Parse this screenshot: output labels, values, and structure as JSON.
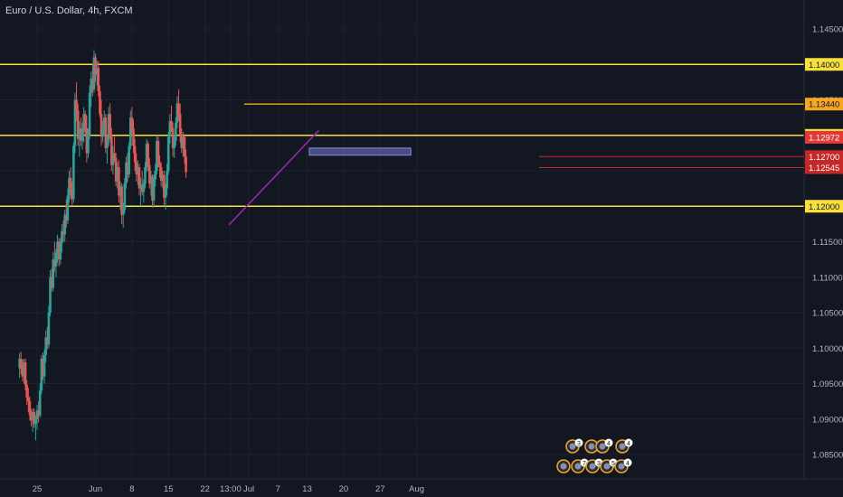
{
  "header": {
    "symbol_title": "Euro / U.S. Dollar, 4h, FXCM"
  },
  "colors": {
    "background": "#131722",
    "grid": "#1e2230",
    "axis_text": "#b2b5be",
    "candle_up": "#26a69a",
    "candle_down": "#ef5350",
    "level_line": "#f7e03c",
    "level_line_alt": "#f5a623",
    "trendline": "#9c27b0",
    "zone_fill": "#5c5ea8",
    "price_tag_red": "#e53935",
    "price_tag_dark": "#c62828"
  },
  "chart_data": {
    "type": "candlestick",
    "symbol": "Euro / U.S. Dollar",
    "timeframe": "4h",
    "source": "FXCM",
    "ylim": [
      1.0822,
      1.1475
    ],
    "price_axis_ticks": [
      "1.14500",
      "1.14000",
      "1.13500",
      "1.13000",
      "1.12500",
      "1.12000",
      "1.11500",
      "1.11000",
      "1.10500",
      "1.10000",
      "1.09500",
      "1.09000",
      "1.08500"
    ],
    "time_axis_ticks": [
      {
        "label": "25",
        "x": 0
      },
      {
        "label": "Jun",
        "x": 8
      },
      {
        "label": "8",
        "x": 13
      },
      {
        "label": "15",
        "x": 18
      },
      {
        "label": "22",
        "x": 23
      },
      {
        "label": "13:00",
        "x": 26.5
      },
      {
        "label": "Jul",
        "x": 29
      },
      {
        "label": "7",
        "x": 33
      },
      {
        "label": "13",
        "x": 37
      },
      {
        "label": "20",
        "x": 42
      },
      {
        "label": "27",
        "x": 47
      },
      {
        "label": "Aug",
        "x": 52
      }
    ],
    "price_levels": [
      {
        "label": "1.14000",
        "value": 1.14,
        "color": "#f7e03c"
      },
      {
        "label": "1.13440",
        "value": 1.1344,
        "color": "#f5a623"
      },
      {
        "label": "1.13000",
        "value": 1.13,
        "color": "#f7e03c"
      },
      {
        "label": "1.12000",
        "value": 1.12,
        "color": "#f7e03c"
      }
    ],
    "price_tags": [
      {
        "label": "1.12972",
        "value": 1.12972,
        "color": "#e53935"
      },
      {
        "label": "1.12700",
        "value": 1.127,
        "color": "#c62828"
      },
      {
        "label": "1.12545",
        "value": 1.12545,
        "color": "#c62828"
      }
    ],
    "trendline": {
      "x1": 26.3,
      "y1": 1.1174,
      "x2": 38.6,
      "y2": 1.1307
    },
    "demand_zone": {
      "x1": 37.3,
      "x2": 51.2,
      "y_top": 1.1282,
      "y_bottom": 1.1272
    },
    "candles": [
      [
        -2.4,
        1.0972,
        1.0993,
        1.0958,
        1.0985
      ],
      [
        -2.2,
        1.0985,
        1.0995,
        1.0963,
        1.0971
      ],
      [
        -2.0,
        1.0971,
        1.0984,
        1.0953,
        1.096
      ],
      [
        -1.8,
        1.096,
        1.0985,
        1.095,
        1.098
      ],
      [
        -1.6,
        1.098,
        1.0985,
        1.094,
        1.0948
      ],
      [
        -1.4,
        1.0948,
        1.0955,
        1.092,
        1.093
      ],
      [
        -1.2,
        1.093,
        1.0944,
        1.091,
        1.0925
      ],
      [
        -1.0,
        1.0925,
        1.0932,
        1.0898,
        1.0906
      ],
      [
        -0.8,
        1.0906,
        1.0914,
        1.089,
        1.0898
      ],
      [
        -0.6,
        1.0898,
        1.0915,
        1.0882,
        1.091
      ],
      [
        -0.4,
        1.091,
        1.0915,
        1.0888,
        1.0893
      ],
      [
        -0.2,
        1.0893,
        1.0905,
        1.087,
        1.09
      ],
      [
        0.0,
        1.09,
        1.092,
        1.0885,
        1.0912
      ],
      [
        0.2,
        1.0912,
        1.0925,
        1.0895,
        1.0905
      ],
      [
        0.4,
        1.0905,
        1.095,
        1.0902,
        1.094
      ],
      [
        0.6,
        1.094,
        1.099,
        1.0935,
        1.0985
      ],
      [
        0.8,
        1.0985,
        1.0994,
        1.0955,
        1.096
      ],
      [
        1.0,
        1.096,
        1.0998,
        1.095,
        1.099
      ],
      [
        1.2,
        1.099,
        1.1025,
        1.098,
        1.1015
      ],
      [
        1.4,
        1.1015,
        1.103,
        1.0998,
        1.1005
      ],
      [
        1.6,
        1.1005,
        1.106,
        1.1,
        1.105
      ],
      [
        1.8,
        1.105,
        1.111,
        1.1045,
        1.11
      ],
      [
        2.0,
        1.11,
        1.1112,
        1.108,
        1.1085
      ],
      [
        2.2,
        1.1085,
        1.1135,
        1.108,
        1.1125
      ],
      [
        2.4,
        1.1125,
        1.115,
        1.1108,
        1.1115
      ],
      [
        2.6,
        1.1115,
        1.114,
        1.11,
        1.1135
      ],
      [
        2.8,
        1.1135,
        1.116,
        1.112,
        1.115
      ],
      [
        3.0,
        1.115,
        1.1155,
        1.1115,
        1.1125
      ],
      [
        3.2,
        1.1125,
        1.1155,
        1.1118,
        1.1148
      ],
      [
        3.4,
        1.1148,
        1.1175,
        1.1135,
        1.1165
      ],
      [
        3.6,
        1.1165,
        1.118,
        1.115,
        1.116
      ],
      [
        3.8,
        1.116,
        1.1195,
        1.115,
        1.1188
      ],
      [
        4.0,
        1.1188,
        1.121,
        1.117,
        1.118
      ],
      [
        4.2,
        1.118,
        1.1225,
        1.1175,
        1.1215
      ],
      [
        4.4,
        1.1215,
        1.125,
        1.1205,
        1.124
      ],
      [
        4.6,
        1.124,
        1.1255,
        1.121,
        1.1225
      ],
      [
        4.8,
        1.1225,
        1.1235,
        1.12,
        1.121
      ],
      [
        5.0,
        1.121,
        1.129,
        1.1205,
        1.1285
      ],
      [
        5.2,
        1.1285,
        1.136,
        1.1275,
        1.135
      ],
      [
        5.4,
        1.135,
        1.1375,
        1.132,
        1.1335
      ],
      [
        5.6,
        1.1335,
        1.1345,
        1.1285,
        1.1295
      ],
      [
        5.8,
        1.1295,
        1.132,
        1.127,
        1.131
      ],
      [
        6.0,
        1.131,
        1.1325,
        1.1285,
        1.1292
      ],
      [
        6.2,
        1.1292,
        1.1318,
        1.128,
        1.1305
      ],
      [
        6.4,
        1.1305,
        1.134,
        1.129,
        1.133
      ],
      [
        6.6,
        1.133,
        1.1335,
        1.13,
        1.131
      ],
      [
        6.8,
        1.131,
        1.1328,
        1.1262,
        1.1275
      ],
      [
        7.0,
        1.1275,
        1.131,
        1.1268,
        1.13
      ],
      [
        7.2,
        1.13,
        1.137,
        1.1295,
        1.136
      ],
      [
        7.4,
        1.136,
        1.139,
        1.134,
        1.138
      ],
      [
        7.6,
        1.138,
        1.14,
        1.1355,
        1.1365
      ],
      [
        7.8,
        1.1365,
        1.142,
        1.136,
        1.141
      ],
      [
        8.0,
        1.141,
        1.1415,
        1.1375,
        1.1385
      ],
      [
        8.2,
        1.1385,
        1.1405,
        1.137,
        1.1395
      ],
      [
        8.4,
        1.1395,
        1.1405,
        1.1355,
        1.1362
      ],
      [
        8.6,
        1.1362,
        1.137,
        1.1325,
        1.133
      ],
      [
        8.8,
        1.133,
        1.135,
        1.1285,
        1.1298
      ],
      [
        9.0,
        1.1298,
        1.132,
        1.129,
        1.1312
      ],
      [
        9.2,
        1.1312,
        1.1335,
        1.13,
        1.1325
      ],
      [
        9.4,
        1.1325,
        1.133,
        1.1275,
        1.1282
      ],
      [
        9.6,
        1.1282,
        1.13,
        1.126,
        1.129
      ],
      [
        9.8,
        1.129,
        1.134,
        1.1285,
        1.133
      ],
      [
        10.0,
        1.133,
        1.1345,
        1.1295,
        1.13
      ],
      [
        10.2,
        1.13,
        1.131,
        1.125,
        1.1258
      ],
      [
        10.4,
        1.1258,
        1.1285,
        1.1245,
        1.1275
      ],
      [
        10.6,
        1.1275,
        1.13,
        1.1262,
        1.1268
      ],
      [
        10.8,
        1.1268,
        1.1275,
        1.1228,
        1.1235
      ],
      [
        11.0,
        1.1235,
        1.1262,
        1.1225,
        1.1255
      ],
      [
        11.2,
        1.1255,
        1.1265,
        1.1205,
        1.1215
      ],
      [
        11.4,
        1.1215,
        1.1235,
        1.1195,
        1.1228
      ],
      [
        11.6,
        1.1228,
        1.1232,
        1.1175,
        1.1188
      ],
      [
        11.8,
        1.1188,
        1.1205,
        1.117,
        1.1195
      ],
      [
        12.0,
        1.1195,
        1.124,
        1.119,
        1.1232
      ],
      [
        12.2,
        1.1232,
        1.127,
        1.1225,
        1.1262
      ],
      [
        12.4,
        1.1262,
        1.1275,
        1.1235,
        1.1245
      ],
      [
        12.6,
        1.1245,
        1.129,
        1.124,
        1.1285
      ],
      [
        12.8,
        1.1285,
        1.1335,
        1.128,
        1.1325
      ],
      [
        13.0,
        1.1325,
        1.134,
        1.13,
        1.131
      ],
      [
        13.2,
        1.131,
        1.1322,
        1.1275,
        1.1285
      ],
      [
        13.4,
        1.1285,
        1.1295,
        1.125,
        1.1262
      ],
      [
        13.6,
        1.1262,
        1.1275,
        1.1235,
        1.1245
      ],
      [
        13.8,
        1.1245,
        1.1265,
        1.123,
        1.1255
      ],
      [
        14.0,
        1.1255,
        1.126,
        1.1215,
        1.1225
      ],
      [
        14.2,
        1.1225,
        1.124,
        1.12,
        1.123
      ],
      [
        14.4,
        1.123,
        1.125,
        1.1215,
        1.122
      ],
      [
        14.6,
        1.122,
        1.1238,
        1.1205,
        1.1232
      ],
      [
        14.8,
        1.1232,
        1.1262,
        1.1225,
        1.1255
      ],
      [
        15.0,
        1.1255,
        1.1295,
        1.1248,
        1.1288
      ],
      [
        15.2,
        1.1288,
        1.1292,
        1.125,
        1.1258
      ],
      [
        15.4,
        1.1258,
        1.1268,
        1.1225,
        1.1232
      ],
      [
        15.6,
        1.1232,
        1.125,
        1.1215,
        1.1242
      ],
      [
        15.8,
        1.1242,
        1.1245,
        1.1198,
        1.1208
      ],
      [
        16.0,
        1.1208,
        1.1245,
        1.12,
        1.1238
      ],
      [
        16.2,
        1.1238,
        1.126,
        1.1228,
        1.125
      ],
      [
        16.4,
        1.125,
        1.13,
        1.1245,
        1.1292
      ],
      [
        16.6,
        1.1292,
        1.1298,
        1.1255,
        1.1262
      ],
      [
        16.8,
        1.1262,
        1.1272,
        1.124,
        1.1255
      ],
      [
        17.0,
        1.1255,
        1.1262,
        1.1228,
        1.1236
      ],
      [
        17.2,
        1.1236,
        1.125,
        1.1225,
        1.1244
      ],
      [
        17.4,
        1.1244,
        1.125,
        1.12,
        1.1212
      ],
      [
        17.6,
        1.1212,
        1.1232,
        1.1195,
        1.1225
      ],
      [
        17.8,
        1.1225,
        1.126,
        1.1215,
        1.125
      ],
      [
        18.0,
        1.125,
        1.1305,
        1.1245,
        1.1298
      ],
      [
        18.2,
        1.1298,
        1.133,
        1.1288,
        1.132
      ],
      [
        18.4,
        1.132,
        1.1342,
        1.1305,
        1.131
      ],
      [
        18.6,
        1.131,
        1.1318,
        1.127,
        1.1282
      ],
      [
        18.8,
        1.1282,
        1.13,
        1.1268,
        1.1292
      ],
      [
        19.0,
        1.1292,
        1.1325,
        1.1285,
        1.1318
      ],
      [
        19.2,
        1.1318,
        1.1355,
        1.131,
        1.1345
      ],
      [
        19.4,
        1.1345,
        1.1365,
        1.132,
        1.133
      ],
      [
        19.6,
        1.133,
        1.1345,
        1.129,
        1.13
      ],
      [
        19.8,
        1.13,
        1.131,
        1.1275,
        1.1282
      ],
      [
        20.0,
        1.1282,
        1.1305,
        1.127,
        1.1298
      ],
      [
        20.2,
        1.1298,
        1.1302,
        1.126,
        1.127
      ],
      [
        20.4,
        1.127,
        1.128,
        1.124,
        1.1248
      ]
    ]
  },
  "ideas_badges": [
    {
      "count": "3"
    },
    {
      "count": "4"
    },
    {
      "count": "4"
    },
    {
      "count": "7"
    },
    {
      "count": "3"
    },
    {
      "count": "5"
    },
    {
      "count": "4"
    }
  ]
}
